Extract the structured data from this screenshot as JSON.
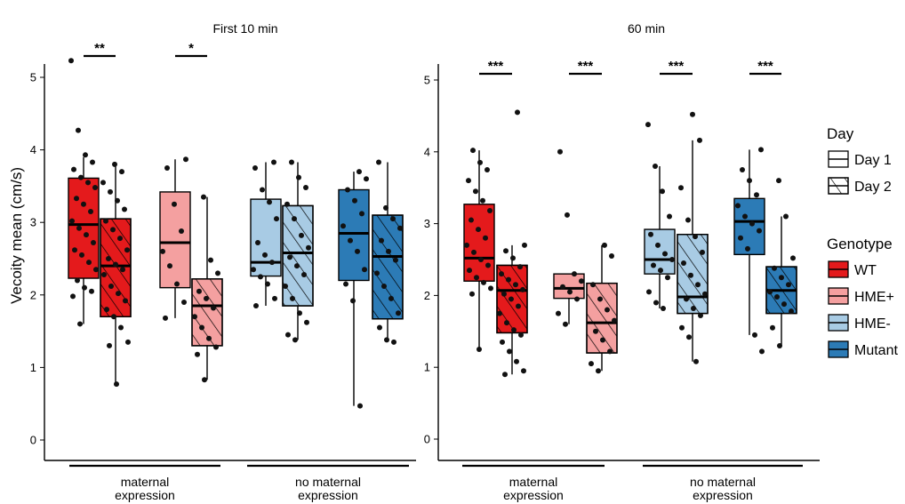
{
  "chart_data": {
    "type": "box",
    "ylabel": "Vecoity mean (cm/s)",
    "ylim": [
      0,
      5.2
    ],
    "yticks": [
      0,
      1,
      2,
      3,
      4,
      5
    ],
    "group_labels": [
      [
        "maternal",
        "expression"
      ],
      [
        "no maternal",
        "expression"
      ]
    ],
    "legend": {
      "day_title": "Day",
      "day_entries": [
        {
          "label": "Day 1",
          "pattern": "plain"
        },
        {
          "label": "Day 2",
          "pattern": "hatched"
        }
      ],
      "genotype_title": "Genotype",
      "genotype_entries": [
        {
          "label": "WT",
          "color": "#e41a1c"
        },
        {
          "label": "HME+",
          "color": "#f4a0a0"
        },
        {
          "label": "HME-",
          "color": "#a8cbe4"
        },
        {
          "label": "Mutant",
          "color": "#2c7bb6"
        }
      ]
    },
    "panels": [
      {
        "title": "First 10 min",
        "boxes": [
          {
            "genotype": "WT",
            "day": "Day 1",
            "group": 0,
            "q1": 2.23,
            "median": 2.97,
            "q3": 3.61,
            "whisker_low": 1.6,
            "whisker_high": 3.9,
            "points": [
              5.23,
              4.27,
              3.93,
              3.83,
              3.73,
              3.62,
              3.55,
              3.48,
              3.33,
              3.25,
              3.15,
              3.02,
              2.92,
              2.83,
              2.72,
              2.62,
              2.55,
              2.45,
              2.35,
              2.2,
              2.1,
              2.05,
              1.98,
              1.6
            ]
          },
          {
            "genotype": "WT",
            "day": "Day 2",
            "group": 0,
            "q1": 1.7,
            "median": 2.4,
            "q3": 3.05,
            "whisker_low": 0.77,
            "whisker_high": 3.8,
            "points": [
              3.8,
              3.7,
              3.55,
              3.42,
              3.3,
              3.18,
              3.02,
              2.9,
              2.78,
              2.62,
              2.5,
              2.42,
              2.35,
              2.28,
              2.12,
              2.02,
              1.92,
              1.8,
              1.7,
              1.55,
              1.35,
              1.3,
              0.77
            ]
          },
          {
            "genotype": "HME+",
            "day": "Day 1",
            "group": 0,
            "q1": 2.1,
            "median": 2.72,
            "q3": 3.42,
            "whisker_low": 1.68,
            "whisker_high": 3.87,
            "points": [
              3.87,
              3.75,
              3.25,
              2.88,
              2.6,
              2.4,
              2.15,
              1.9,
              1.68
            ]
          },
          {
            "genotype": "HME+",
            "day": "Day 2",
            "group": 0,
            "q1": 1.3,
            "median": 1.85,
            "q3": 2.22,
            "whisker_low": 0.83,
            "whisker_high": 3.35,
            "points": [
              3.35,
              2.48,
              2.3,
              2.05,
              1.95,
              1.82,
              1.7,
              1.55,
              1.4,
              1.28,
              1.18,
              0.83
            ]
          },
          {
            "genotype": "HME-",
            "day": "Day 1",
            "group": 1,
            "q1": 2.26,
            "median": 2.45,
            "q3": 3.32,
            "whisker_low": 1.85,
            "whisker_high": 3.83,
            "points": [
              3.83,
              3.75,
              3.45,
              3.28,
              3.05,
              2.72,
              2.55,
              2.45,
              2.35,
              2.25,
              2.15,
              1.95,
              1.85
            ]
          },
          {
            "genotype": "HME-",
            "day": "Day 2",
            "group": 1,
            "q1": 1.85,
            "median": 2.58,
            "q3": 3.23,
            "whisker_low": 1.38,
            "whisker_high": 3.83,
            "points": [
              3.83,
              3.62,
              3.48,
              3.25,
              3.05,
              2.82,
              2.65,
              2.52,
              2.4,
              2.28,
              2.12,
              1.95,
              1.75,
              1.62,
              1.45,
              1.38
            ]
          },
          {
            "genotype": "Mutant",
            "day": "Day 1",
            "group": 1,
            "q1": 2.2,
            "median": 2.85,
            "q3": 3.45,
            "whisker_low": 0.47,
            "whisker_high": 3.7,
            "points": [
              3.7,
              3.6,
              3.45,
              3.3,
              3.12,
              2.95,
              2.75,
              2.6,
              2.35,
              2.15,
              1.92,
              0.47
            ]
          },
          {
            "genotype": "Mutant",
            "day": "Day 2",
            "group": 1,
            "q1": 1.67,
            "median": 2.53,
            "q3": 3.1,
            "whisker_low": 1.35,
            "whisker_high": 3.83,
            "points": [
              3.83,
              3.2,
              3.05,
              2.92,
              2.75,
              2.6,
              2.48,
              2.3,
              2.12,
              1.95,
              1.75,
              1.55,
              1.38,
              1.35
            ]
          }
        ],
        "significance": [
          {
            "label": "**",
            "boxes": [
              0,
              1
            ]
          },
          {
            "label": "*",
            "boxes": [
              2,
              3
            ]
          }
        ]
      },
      {
        "title": "60 min",
        "boxes": [
          {
            "genotype": "WT",
            "day": "Day 1",
            "group": 0,
            "q1": 2.2,
            "median": 2.52,
            "q3": 3.27,
            "whisker_low": 1.25,
            "whisker_high": 4.02,
            "points": [
              4.02,
              3.85,
              3.75,
              3.6,
              3.45,
              3.32,
              3.18,
              3.05,
              2.92,
              2.8,
              2.7,
              2.6,
              2.5,
              2.42,
              2.35,
              2.25,
              2.18,
              2.1,
              2.02,
              1.25
            ]
          },
          {
            "genotype": "WT",
            "day": "Day 2",
            "group": 0,
            "q1": 1.48,
            "median": 2.07,
            "q3": 2.42,
            "whisker_low": 0.9,
            "whisker_high": 2.7,
            "points": [
              4.55,
              2.7,
              2.62,
              2.52,
              2.4,
              2.3,
              2.22,
              2.15,
              2.08,
              2.02,
              1.95,
              1.85,
              1.75,
              1.62,
              1.52,
              1.45,
              1.35,
              1.22,
              1.08,
              0.95,
              0.9
            ]
          },
          {
            "genotype": "HME+",
            "day": "Day 1",
            "group": 0,
            "q1": 1.96,
            "median": 2.1,
            "q3": 2.3,
            "whisker_low": 1.6,
            "whisker_high": 2.3,
            "points": [
              4.0,
              3.12,
              2.3,
              2.2,
              2.12,
              2.05,
              1.95,
              1.75,
              1.6
            ]
          },
          {
            "genotype": "HME+",
            "day": "Day 2",
            "group": 0,
            "q1": 1.2,
            "median": 1.62,
            "q3": 2.17,
            "whisker_low": 0.95,
            "whisker_high": 2.7,
            "points": [
              2.7,
              2.55,
              2.15,
              1.95,
              1.8,
              1.65,
              1.5,
              1.38,
              1.22,
              1.05,
              0.95
            ]
          },
          {
            "genotype": "HME-",
            "day": "Day 1",
            "group": 1,
            "q1": 2.3,
            "median": 2.5,
            "q3": 2.92,
            "whisker_low": 1.82,
            "whisker_high": 3.8,
            "points": [
              4.38,
              3.8,
              3.45,
              3.1,
              2.85,
              2.7,
              2.58,
              2.5,
              2.42,
              2.35,
              2.25,
              2.05,
              1.9,
              1.82
            ]
          },
          {
            "genotype": "HME-",
            "day": "Day 2",
            "group": 1,
            "q1": 1.75,
            "median": 1.98,
            "q3": 2.85,
            "whisker_low": 1.08,
            "whisker_high": 4.16,
            "points": [
              4.52,
              4.16,
              3.5,
              3.05,
              2.82,
              2.6,
              2.45,
              2.28,
              2.15,
              2.02,
              1.95,
              1.82,
              1.72,
              1.55,
              1.42,
              1.08
            ]
          },
          {
            "genotype": "Mutant",
            "day": "Day 1",
            "group": 1,
            "q1": 2.57,
            "median": 3.03,
            "q3": 3.35,
            "whisker_low": 1.45,
            "whisker_high": 4.03,
            "points": [
              4.03,
              3.75,
              3.6,
              3.4,
              3.25,
              3.1,
              3.0,
              2.9,
              2.8,
              2.65,
              1.45,
              1.22
            ]
          },
          {
            "genotype": "Mutant",
            "day": "Day 2",
            "group": 1,
            "q1": 1.75,
            "median": 2.07,
            "q3": 2.4,
            "whisker_low": 1.3,
            "whisker_high": 3.1,
            "points": [
              3.6,
              3.1,
              2.52,
              2.38,
              2.25,
              2.15,
              2.05,
              1.98,
              1.88,
              1.78,
              1.55,
              1.3
            ]
          }
        ],
        "significance": [
          {
            "label": "***",
            "boxes": [
              0,
              1
            ]
          },
          {
            "label": "***",
            "boxes": [
              2,
              3
            ]
          },
          {
            "label": "***",
            "boxes": [
              4,
              5
            ]
          },
          {
            "label": "***",
            "boxes": [
              6,
              7
            ]
          }
        ]
      }
    ]
  }
}
